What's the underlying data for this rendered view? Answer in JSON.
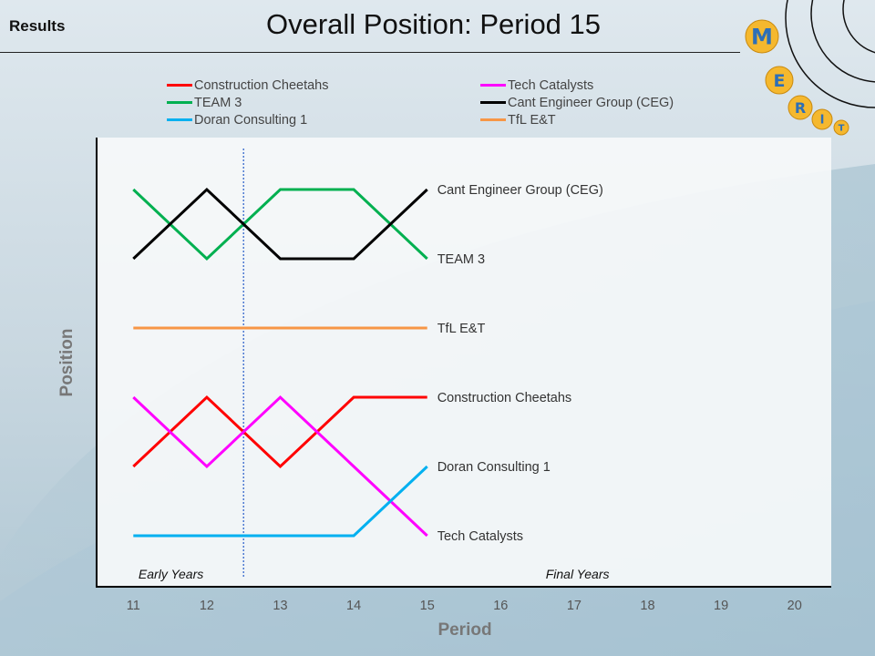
{
  "page": {
    "section_label": "Results",
    "title": "Overall Position: Period 15"
  },
  "logo": {
    "letters": [
      "M",
      "E",
      "R",
      "I",
      "T"
    ],
    "colors": {
      "gold": "#f5b82e",
      "letter": "#2e6fb7"
    }
  },
  "chart_data": {
    "type": "line",
    "title": "Overall Position: Period 15",
    "xlabel": "Period",
    "ylabel": "Position",
    "x": [
      11,
      12,
      13,
      14,
      15
    ],
    "x_ticks": [
      11,
      12,
      13,
      14,
      15,
      16,
      17,
      18,
      19,
      20
    ],
    "xlim": [
      10.5,
      20.5
    ],
    "ylim": [
      0.25,
      6.75
    ],
    "y_inverted": true,
    "divider_x": 12.5,
    "legend_position": "top",
    "annotations": [
      {
        "text": "Early Years",
        "x": 11.5,
        "y": 6.5
      },
      {
        "text": "Final Years",
        "x": 16.5,
        "y": 6.5
      }
    ],
    "series": [
      {
        "name": "Construction Cheetahs",
        "color": "#ff0000",
        "values": [
          5,
          4,
          5,
          4,
          4
        ]
      },
      {
        "name": "Tech Catalysts",
        "color": "#ff00ff",
        "values": [
          4,
          5,
          4,
          5,
          6
        ]
      },
      {
        "name": "TEAM 3",
        "color": "#00b050",
        "values": [
          1,
          2,
          1,
          1,
          2
        ]
      },
      {
        "name": "Cant Engineer Group (CEG)",
        "color": "#000000",
        "values": [
          2,
          1,
          2,
          2,
          1
        ]
      },
      {
        "name": "Doran Consulting 1",
        "color": "#00b0f0",
        "values": [
          6,
          6,
          6,
          6,
          5
        ]
      },
      {
        "name": "TfL E&T",
        "color": "#f79646",
        "values": [
          3,
          3,
          3,
          3,
          3
        ]
      }
    ]
  }
}
